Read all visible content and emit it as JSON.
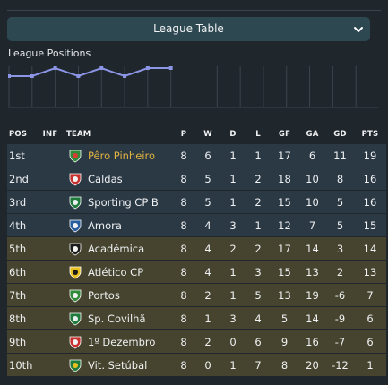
{
  "header": {
    "dropdown_label": "League Table",
    "dropdown_icon": "chevron-down-icon"
  },
  "positions_chart": {
    "title": "League Positions",
    "line_color": "#8c95e6",
    "matches": 8,
    "positions": [
      2,
      2,
      1,
      2,
      1,
      2,
      1,
      1
    ]
  },
  "table": {
    "headers": {
      "pos": "POS",
      "inf": "INF",
      "team": "TEAM",
      "p": "P",
      "w": "W",
      "d": "D",
      "l": "L",
      "gf": "GF",
      "ga": "GA",
      "gd": "GD",
      "pts": "PTS"
    },
    "rows": [
      {
        "pos": "1st",
        "team": "Pêro Pinheiro",
        "p": "8",
        "w": "6",
        "d": "1",
        "l": "1",
        "gf": "17",
        "ga": "6",
        "gd": "11",
        "pts": "19",
        "badge": "green-red",
        "zone": "promo",
        "highlight": true
      },
      {
        "pos": "2nd",
        "team": "Caldas",
        "p": "8",
        "w": "5",
        "d": "1",
        "l": "2",
        "gf": "18",
        "ga": "10",
        "gd": "8",
        "pts": "16",
        "badge": "red-white",
        "zone": "promo",
        "highlight": false
      },
      {
        "pos": "3rd",
        "team": "Sporting CP B",
        "p": "8",
        "w": "5",
        "d": "1",
        "l": "2",
        "gf": "15",
        "ga": "10",
        "gd": "5",
        "pts": "16",
        "badge": "green-lion",
        "zone": "promo",
        "highlight": false
      },
      {
        "pos": "4th",
        "team": "Amora",
        "p": "8",
        "w": "4",
        "d": "3",
        "l": "1",
        "gf": "12",
        "ga": "7",
        "gd": "5",
        "pts": "15",
        "badge": "blue-white",
        "zone": "promo",
        "highlight": false
      },
      {
        "pos": "5th",
        "team": "Académica",
        "p": "8",
        "w": "4",
        "d": "2",
        "l": "2",
        "gf": "17",
        "ga": "14",
        "gd": "3",
        "pts": "14",
        "badge": "black-white",
        "zone": "mid",
        "highlight": false
      },
      {
        "pos": "6th",
        "team": "Atlético CP",
        "p": "8",
        "w": "4",
        "d": "1",
        "l": "3",
        "gf": "15",
        "ga": "13",
        "gd": "2",
        "pts": "13",
        "badge": "yellow-black",
        "zone": "mid",
        "highlight": false
      },
      {
        "pos": "7th",
        "team": "Portos",
        "p": "8",
        "w": "2",
        "d": "1",
        "l": "5",
        "gf": "13",
        "ga": "19",
        "gd": "-6",
        "pts": "7",
        "badge": "green-white",
        "zone": "mid",
        "highlight": false
      },
      {
        "pos": "8th",
        "team": "Sp. Covilhã",
        "p": "8",
        "w": "1",
        "d": "3",
        "l": "4",
        "gf": "5",
        "ga": "14",
        "gd": "-9",
        "pts": "6",
        "badge": "green-lion",
        "zone": "mid",
        "highlight": false
      },
      {
        "pos": "9th",
        "team": "1º Dezembro",
        "p": "8",
        "w": "2",
        "d": "0",
        "l": "6",
        "gf": "9",
        "ga": "16",
        "gd": "-7",
        "pts": "6",
        "badge": "red-white",
        "zone": "mid",
        "highlight": false
      },
      {
        "pos": "10th",
        "team": "Vit. Setúbal",
        "p": "8",
        "w": "0",
        "d": "1",
        "l": "7",
        "gf": "8",
        "ga": "20",
        "gd": "-12",
        "pts": "1",
        "badge": "green-yellow",
        "zone": "mid",
        "highlight": false
      }
    ]
  }
}
